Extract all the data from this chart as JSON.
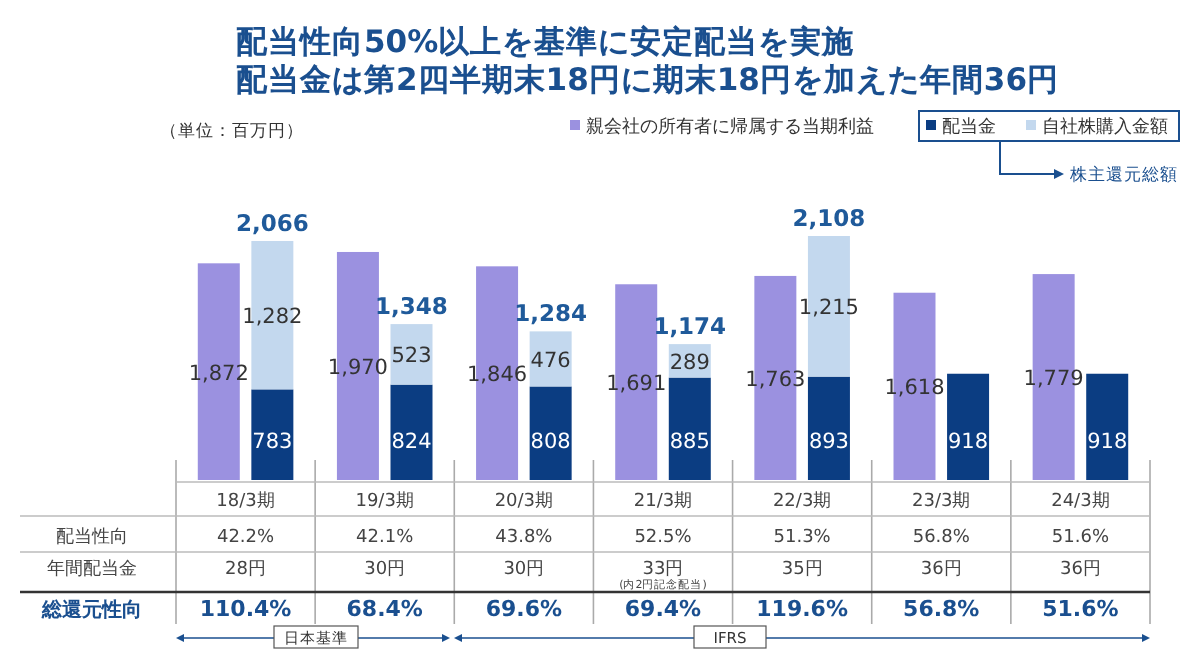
{
  "chart_data": [
    {
      "type": "bar",
      "title": "配当性向50%以上を基準に安定配当を実施",
      "subtitle": "配当金は第2四半期末18円に期末18円を加えた年間36円",
      "categories": [
        "18/3期",
        "19/3期",
        "20/3期",
        "21/3期",
        "22/3期",
        "23/3期",
        "24/3期"
      ],
      "series": [
        {
          "name": "親会社の所有者に帰属する当期利益",
          "color": "#9b91e0",
          "values": [
            1872,
            1970,
            1846,
            1691,
            1763,
            1618,
            1779
          ],
          "value_labels": [
            "1,872",
            "1,970",
            "1,846",
            "1,691",
            "1,763",
            "1,618",
            "1,779"
          ]
        }
      ],
      "legend": "top right",
      "annotations": [
        "（単位：百万円）"
      ]
    },
    {
      "type": "bar",
      "categories": [
        null,
        null,
        null,
        null,
        null,
        null,
        null
      ],
      "series": [
        {
          "name": "配当金",
          "color": "#0b3d82",
          "values": [
            783,
            824,
            808,
            885,
            893,
            918,
            918
          ],
          "value_labels": [
            "783",
            "824",
            "808",
            "885",
            "893",
            "918",
            "918"
          ]
        },
        {
          "name": "自社株購入金額",
          "color": "#c3d8ee",
          "values": [
            1282,
            523,
            476,
            289,
            1215,
            null,
            null
          ],
          "value_labels": [
            "1,282",
            "523",
            "476",
            "289",
            "1,215",
            null,
            null
          ]
        }
      ],
      "stacked": true,
      "totals": [
        "2,066",
        "1,348",
        "1,284",
        "1,174",
        "2,108",
        null,
        null
      ],
      "legend": "top right",
      "annotations": [
        "株主還元総額",
        "配当性向",
        "42.2%",
        "42.1%",
        "43.8%",
        "52.5%",
        "51.3%",
        "56.8%",
        "51.6%",
        "年間配当金",
        "28円",
        "30円",
        "30円",
        "33円",
        "35円",
        "36円",
        "36円",
        "総還元性向",
        "110.4%",
        "68.4%",
        "69.6%",
        "69.4%",
        "119.6%",
        "56.8%",
        "51.6%",
        "(内2円記念配当)",
        "日本基準",
        "IFRS"
      ]
    }
  ]
}
